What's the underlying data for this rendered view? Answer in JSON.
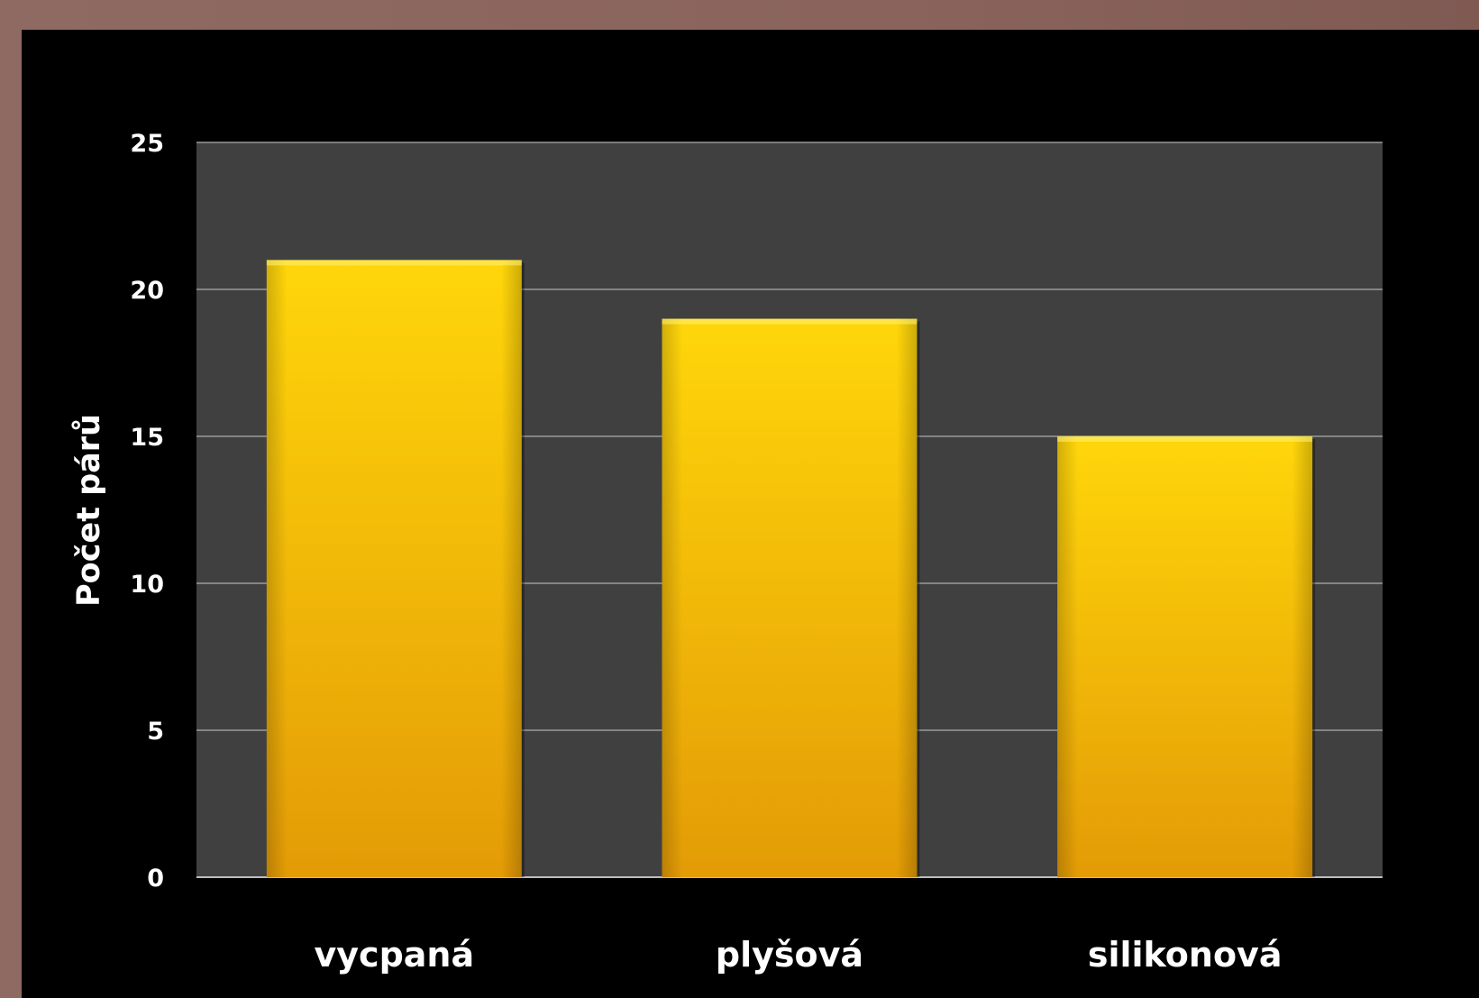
{
  "chart_data": {
    "type": "bar",
    "categories": [
      "vycpaná",
      "plyšová",
      "silikonová"
    ],
    "values": [
      21,
      19,
      15
    ],
    "title": "",
    "xlabel": "",
    "ylabel": "Počet párů",
    "ylim": [
      0,
      25
    ],
    "yticks": [
      "0",
      "5",
      "10",
      "15",
      "20",
      "25"
    ],
    "grid": true,
    "legend": "none",
    "colors": {
      "bar_top": "#ffd60a",
      "bar_bottom": "#e39b06",
      "plot_background": "#404040",
      "canvas_background": "#000000",
      "frame": "#8d675f",
      "gridline": "#9a9a9a",
      "text": "#ffffff"
    }
  }
}
